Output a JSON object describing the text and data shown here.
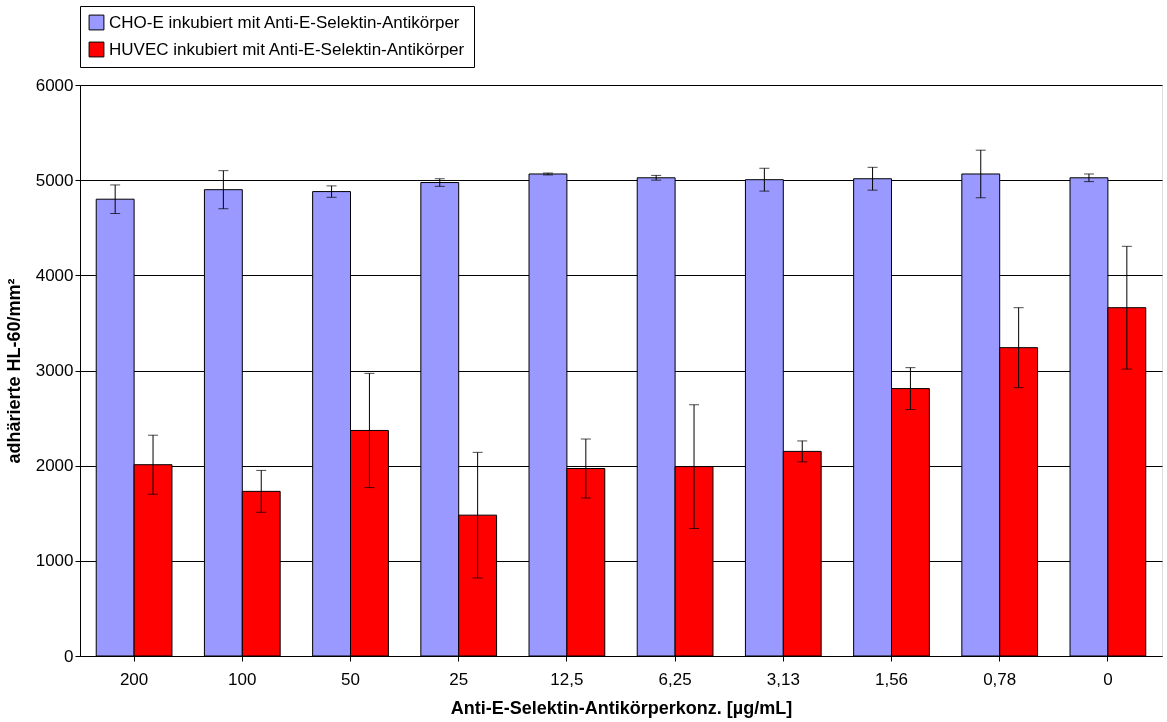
{
  "chart_data": {
    "type": "bar",
    "xlabel": "Anti-E-Selektin-Antikörperkonz. [µg/mL]",
    "ylabel": "adhärierte HL-60/mm²",
    "categories": [
      "200",
      "100",
      "50",
      "25",
      "12,5",
      "6,25",
      "3,13",
      "1,56",
      "0,78",
      "0"
    ],
    "series": [
      {
        "name": "CHO-E inkubiert mit Anti-E-Selektin-Antikörper",
        "color": "#9999ff",
        "values": [
          4800,
          4900,
          4880,
          4975,
          5065,
          5025,
          5005,
          5015,
          5065,
          5025
        ],
        "errors": [
          150,
          200,
          60,
          40,
          10,
          25,
          120,
          120,
          250,
          40
        ]
      },
      {
        "name": "HUVEC inkubiert mit Anti-E-Selektin-Antikörper",
        "color": "#ff0000",
        "values": [
          2010,
          1730,
          2370,
          1480,
          1970,
          1990,
          2150,
          2810,
          3240,
          3660
        ],
        "errors": [
          310,
          220,
          600,
          660,
          310,
          650,
          110,
          220,
          420,
          645
        ]
      }
    ],
    "ylim": [
      0,
      6000
    ],
    "yticks": [
      0,
      1000,
      2000,
      3000,
      4000,
      5000,
      6000
    ],
    "grid": "y",
    "legend": "top"
  }
}
